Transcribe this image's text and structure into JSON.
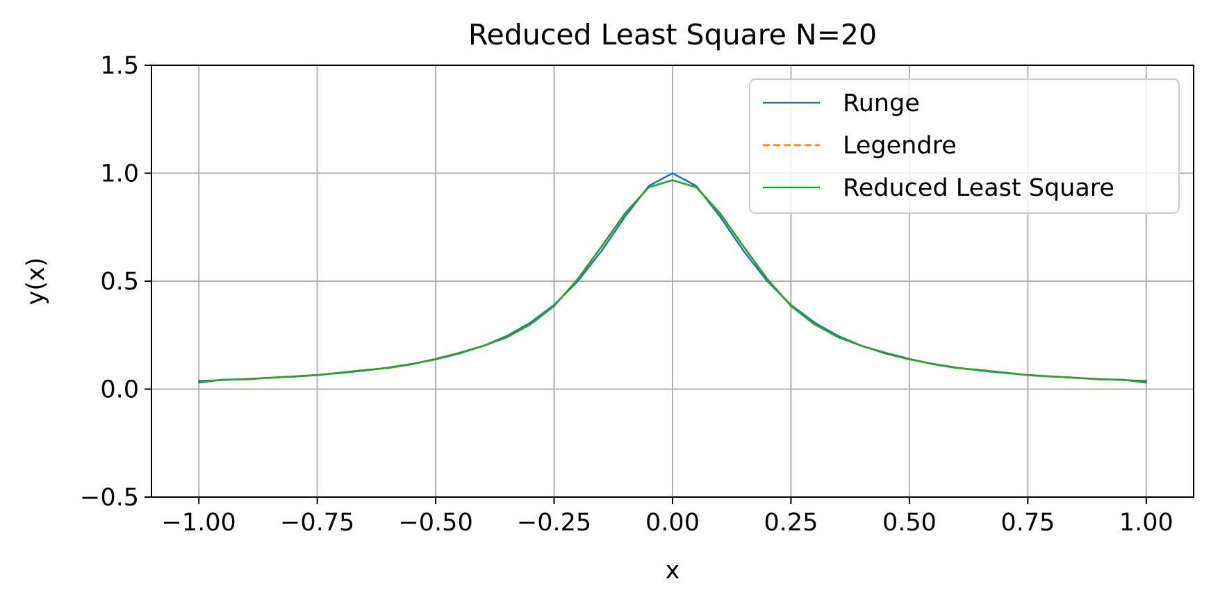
{
  "chart_data": {
    "type": "line",
    "title": "Reduced Least Square N=20",
    "xlabel": "x",
    "ylabel": "y(x)",
    "xlim": [
      -1.1,
      1.1
    ],
    "ylim": [
      -0.5,
      1.5
    ],
    "xticks": [
      -1.0,
      -0.75,
      -0.5,
      -0.25,
      0.0,
      0.25,
      0.5,
      0.75,
      1.0
    ],
    "xtick_labels": [
      "−1.00",
      "−0.75",
      "−0.50",
      "−0.25",
      "0.00",
      "0.25",
      "0.50",
      "0.75",
      "1.00"
    ],
    "yticks": [
      -0.5,
      0.0,
      0.5,
      1.0,
      1.5
    ],
    "ytick_labels": [
      "−0.5",
      "0.0",
      "0.5",
      "1.0",
      "1.5"
    ],
    "grid": true,
    "legend_position": "top-right",
    "x": [
      -1.0,
      -0.95,
      -0.9,
      -0.85,
      -0.8,
      -0.75,
      -0.7,
      -0.65,
      -0.6,
      -0.55,
      -0.5,
      -0.45,
      -0.4,
      -0.35,
      -0.3,
      -0.25,
      -0.2,
      -0.15,
      -0.1,
      -0.05,
      0.0,
      0.05,
      0.1,
      0.15,
      0.2,
      0.25,
      0.3,
      0.35,
      0.4,
      0.45,
      0.5,
      0.55,
      0.6,
      0.65,
      0.7,
      0.75,
      0.8,
      0.85,
      0.9,
      0.95,
      1.0
    ],
    "series": [
      {
        "name": "Runge",
        "color": "#1f77b4",
        "style": "solid",
        "values": [
          0.038,
          0.042,
          0.047,
          0.052,
          0.059,
          0.066,
          0.075,
          0.086,
          0.1,
          0.117,
          0.138,
          0.165,
          0.2,
          0.246,
          0.308,
          0.39,
          0.5,
          0.64,
          0.8,
          0.941,
          1.0,
          0.941,
          0.8,
          0.64,
          0.5,
          0.39,
          0.308,
          0.246,
          0.2,
          0.165,
          0.138,
          0.117,
          0.1,
          0.086,
          0.075,
          0.066,
          0.059,
          0.052,
          0.047,
          0.042,
          0.038
        ]
      },
      {
        "name": "Legendre",
        "color": "#ff7f0e",
        "style": "dashed",
        "values": [
          0.03,
          0.044,
          0.045,
          0.053,
          0.058,
          0.065,
          0.077,
          0.088,
          0.098,
          0.115,
          0.14,
          0.168,
          0.2,
          0.24,
          0.3,
          0.385,
          0.51,
          0.66,
          0.815,
          0.935,
          0.968,
          0.935,
          0.815,
          0.66,
          0.51,
          0.385,
          0.3,
          0.24,
          0.2,
          0.168,
          0.14,
          0.115,
          0.098,
          0.088,
          0.077,
          0.065,
          0.058,
          0.053,
          0.045,
          0.044,
          0.03
        ]
      },
      {
        "name": "Reduced Least Square",
        "color": "#2ca02c",
        "style": "solid",
        "values": [
          0.03,
          0.044,
          0.045,
          0.053,
          0.058,
          0.065,
          0.077,
          0.088,
          0.098,
          0.115,
          0.14,
          0.168,
          0.2,
          0.24,
          0.3,
          0.385,
          0.51,
          0.66,
          0.815,
          0.935,
          0.968,
          0.935,
          0.815,
          0.66,
          0.51,
          0.385,
          0.3,
          0.24,
          0.2,
          0.168,
          0.14,
          0.115,
          0.098,
          0.088,
          0.077,
          0.065,
          0.058,
          0.053,
          0.045,
          0.044,
          0.03
        ]
      }
    ]
  }
}
